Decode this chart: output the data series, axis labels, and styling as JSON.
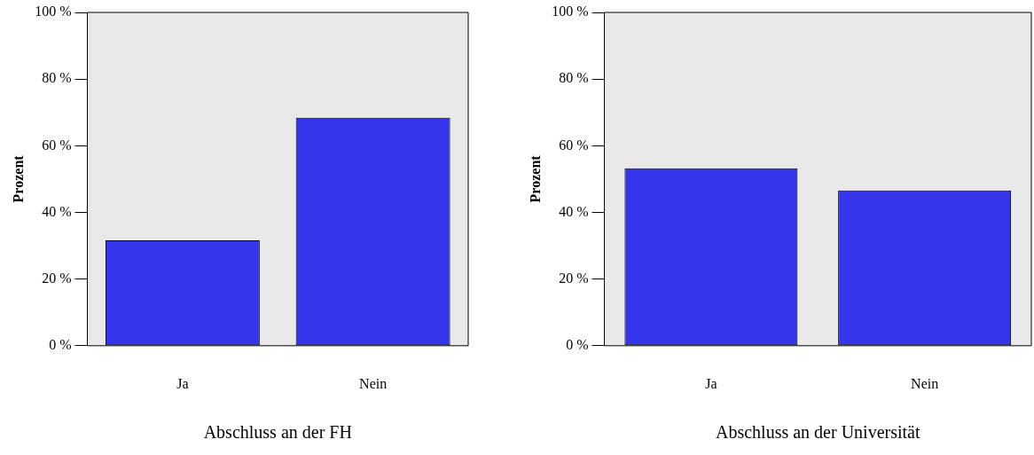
{
  "chart_data": [
    {
      "type": "bar",
      "xlabel": "Abschluss an der FH",
      "ylabel": "Prozent",
      "categories": [
        "Ja",
        "Nein"
      ],
      "values": [
        31.6,
        68.4
      ],
      "color": "#3535eb",
      "ylim": [
        0,
        100
      ],
      "yticks": [
        {
          "value": 0,
          "label": "0 %"
        },
        {
          "value": 20,
          "label": "20 %"
        },
        {
          "value": 40,
          "label": "40 %"
        },
        {
          "value": 60,
          "label": "60 %"
        },
        {
          "value": 80,
          "label": "80 %"
        },
        {
          "value": 100,
          "label": "100 %"
        }
      ],
      "grid": false,
      "legend": false
    },
    {
      "type": "bar",
      "xlabel": "Abschluss an der Universität",
      "ylabel": "Prozent",
      "categories": [
        "Ja",
        "Nein"
      ],
      "values": [
        53.2,
        46.6
      ],
      "color": "#3535eb",
      "ylim": [
        0,
        100
      ],
      "yticks": [
        {
          "value": 0,
          "label": "0 %"
        },
        {
          "value": 20,
          "label": "20 %"
        },
        {
          "value": 40,
          "label": "40 %"
        },
        {
          "value": 60,
          "label": "60 %"
        },
        {
          "value": 80,
          "label": "80 %"
        },
        {
          "value": 100,
          "label": "100 %"
        }
      ],
      "grid": false,
      "legend": false
    }
  ]
}
